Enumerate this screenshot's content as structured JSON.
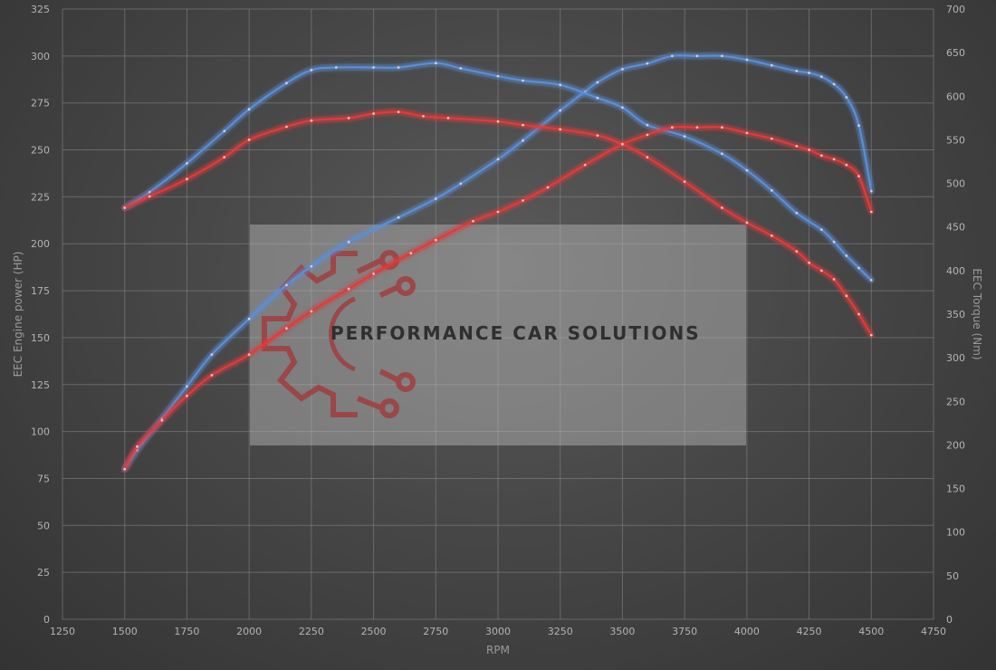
{
  "chart_data": {
    "type": "line",
    "xlabel": "RPM",
    "ylabel_left": "EEC Engine power (HP)",
    "ylabel_right": "EEC Torque (Nm)",
    "xlim": [
      1250,
      4750
    ],
    "x_ticks": [
      1250,
      1500,
      1750,
      2000,
      2250,
      2500,
      2750,
      3000,
      3250,
      3500,
      3750,
      4000,
      4250,
      4500,
      4750
    ],
    "ylim_left": [
      0,
      325
    ],
    "y_ticks_left": [
      0,
      25,
      50,
      75,
      100,
      125,
      150,
      175,
      200,
      225,
      250,
      275,
      300,
      325
    ],
    "ylim_right": [
      0,
      700
    ],
    "y_ticks_right": [
      0,
      50,
      100,
      150,
      200,
      250,
      300,
      350,
      400,
      450,
      500,
      550,
      600,
      650,
      700
    ],
    "grid": true,
    "series": [
      {
        "color": "#5b8ed8",
        "axis": "left",
        "x": [
          1500,
          1550,
          1650,
          1750,
          1850,
          2000,
          2150,
          2250,
          2400,
          2600,
          2750,
          2850,
          3000,
          3100,
          3250,
          3350,
          3400,
          3500,
          3600,
          3700,
          3800,
          3900,
          4000,
          4100,
          4200,
          4250,
          4300,
          4350,
          4400,
          4450,
          4500
        ],
        "y": [
          80,
          90,
          107,
          124,
          141,
          160,
          178,
          188,
          201,
          214,
          224,
          232,
          245,
          255,
          271,
          281,
          286,
          293,
          296,
          300,
          300,
          300,
          298,
          295,
          292,
          291,
          289,
          285,
          278,
          263,
          228
        ]
      },
      {
        "color": "#5b8ed8",
        "axis": "right",
        "x": [
          1500,
          1600,
          1750,
          1900,
          2000,
          2150,
          2250,
          2350,
          2500,
          2600,
          2750,
          2850,
          3000,
          3100,
          3250,
          3400,
          3500,
          3600,
          3750,
          3900,
          4000,
          4100,
          4200,
          4300,
          4350,
          4400,
          4450,
          4500
        ],
        "y": [
          472,
          490,
          523,
          560,
          585,
          615,
          630,
          633,
          633,
          633,
          638,
          632,
          623,
          618,
          613,
          598,
          587,
          567,
          554,
          534,
          515,
          492,
          466,
          447,
          433,
          417,
          403,
          389
        ]
      },
      {
        "color": "#e03a3a",
        "axis": "left",
        "x": [
          1500,
          1550,
          1650,
          1750,
          1850,
          2000,
          2150,
          2250,
          2400,
          2500,
          2650,
          2750,
          2900,
          3000,
          3100,
          3200,
          3350,
          3500,
          3600,
          3700,
          3800,
          3900,
          4000,
          4100,
          4200,
          4250,
          4300,
          4350,
          4400,
          4450,
          4500
        ],
        "y": [
          80,
          92,
          106,
          119,
          130,
          141,
          155,
          164,
          176,
          184,
          195,
          202,
          212,
          217,
          223,
          230,
          242,
          253,
          258,
          262,
          262,
          262,
          259,
          256,
          252,
          250,
          247,
          245,
          242,
          236,
          217
        ]
      },
      {
        "color": "#e03a3a",
        "axis": "right",
        "x": [
          1500,
          1600,
          1750,
          1900,
          2000,
          2150,
          2250,
          2400,
          2500,
          2600,
          2700,
          2800,
          3000,
          3100,
          3250,
          3400,
          3500,
          3600,
          3750,
          3900,
          4000,
          4100,
          4200,
          4250,
          4300,
          4350,
          4400,
          4450,
          4500
        ],
        "y": [
          472,
          485,
          505,
          530,
          550,
          565,
          572,
          575,
          580,
          582,
          577,
          575,
          571,
          567,
          562,
          555,
          545,
          530,
          502,
          472,
          455,
          440,
          422,
          409,
          400,
          390,
          371,
          350,
          326
        ]
      }
    ]
  },
  "watermark": {
    "text": "PERFORMANCE CAR SOLUTIONS"
  }
}
